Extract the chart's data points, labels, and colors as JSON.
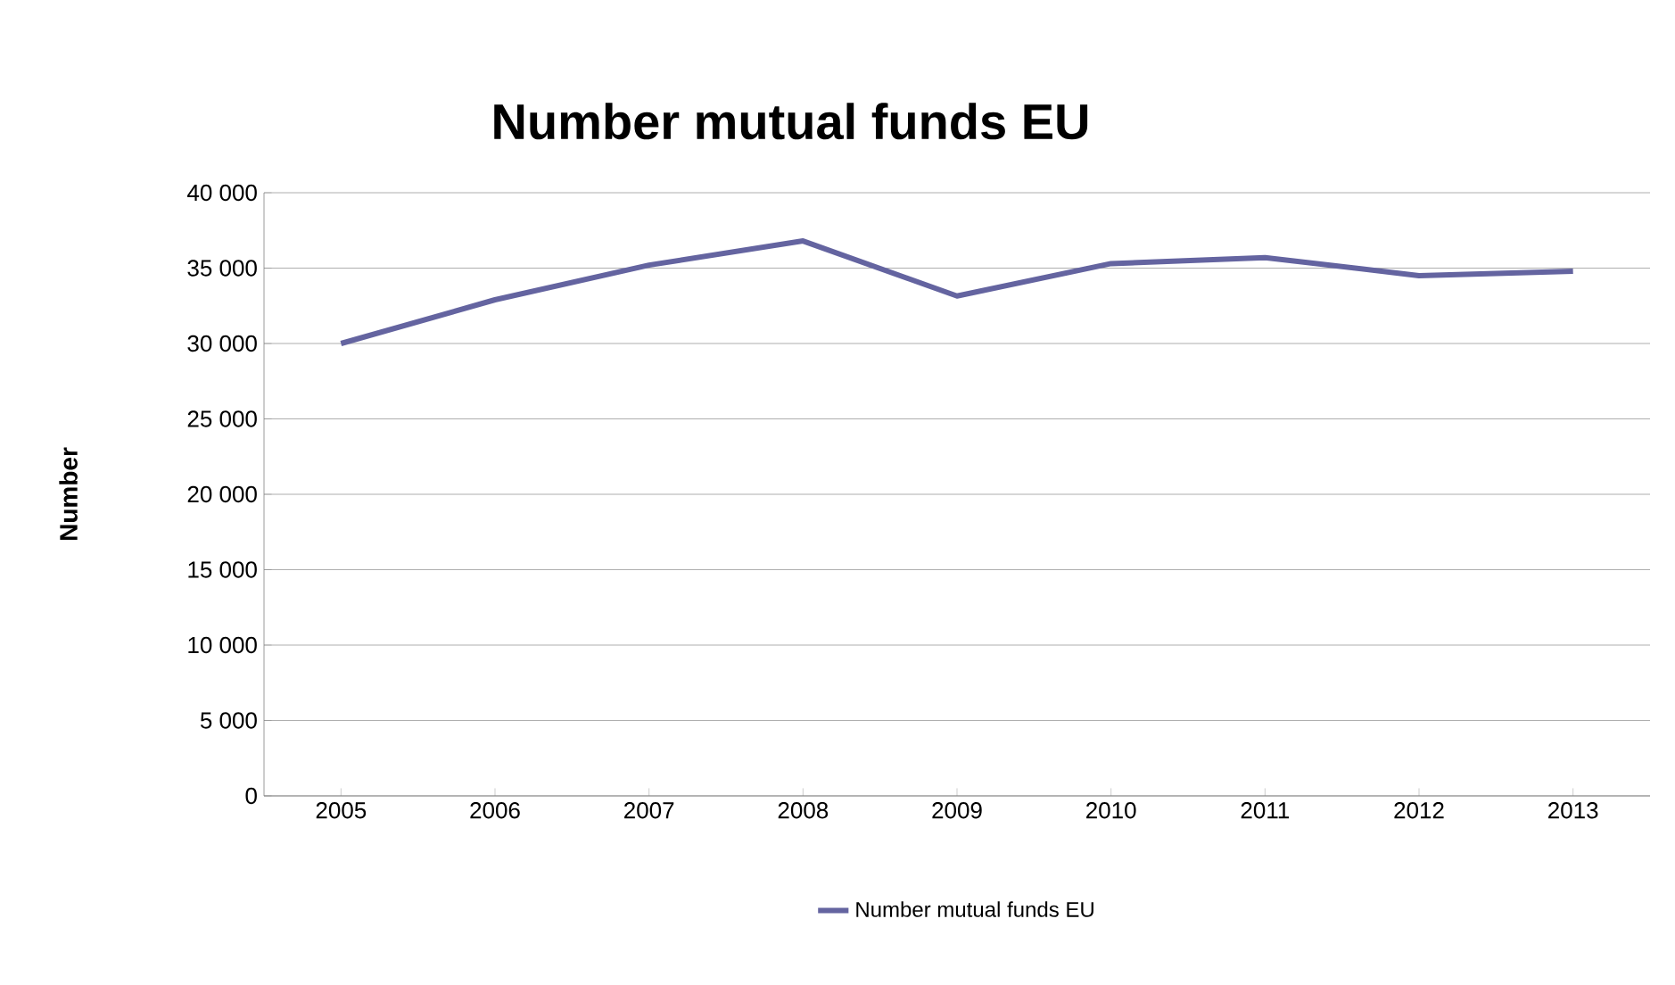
{
  "chart_data": {
    "type": "line",
    "title": "Number mutual funds EU",
    "ylabel": "Number",
    "categories": [
      "2005",
      "2006",
      "2007",
      "2008",
      "2009",
      "2010",
      "2011",
      "2012",
      "2013"
    ],
    "series": [
      {
        "name": "Number mutual funds EU",
        "color": "#6464a0",
        "values": [
          30000,
          32900,
          35200,
          36800,
          33150,
          35300,
          35700,
          34500,
          34800
        ]
      }
    ],
    "ylim": [
      0,
      40000
    ],
    "yticks": [
      {
        "value": 0,
        "label": "0"
      },
      {
        "value": 5000,
        "label": "5 000"
      },
      {
        "value": 10000,
        "label": "10 000"
      },
      {
        "value": 15000,
        "label": "15 000"
      },
      {
        "value": 20000,
        "label": "20 000"
      },
      {
        "value": 25000,
        "label": "25 000"
      },
      {
        "value": 30000,
        "label": "30 000"
      },
      {
        "value": 35000,
        "label": "35 000"
      },
      {
        "value": 40000,
        "label": "40 000"
      }
    ],
    "grid": "y",
    "legend": "bottom",
    "marker": "none",
    "line_style": "solid"
  }
}
